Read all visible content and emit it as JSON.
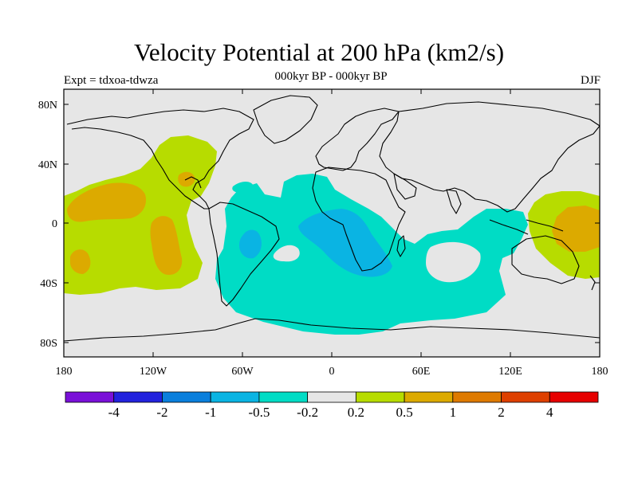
{
  "title": "Velocity Potential at 200 hPa (km2/s)",
  "subtitle_center": "000kyr BP - 000kyr BP",
  "subtitle_left": "Expt = tdxoa-tdwza",
  "subtitle_right": "DJF",
  "map": {
    "projection": "cylindrical equidistant",
    "lon_range": [
      -180,
      180
    ],
    "lat_range": [
      -90,
      90
    ],
    "background_color": "#e6e6e6",
    "y_tick_labels": [
      "80N",
      "40N",
      "0",
      "40S",
      "80S"
    ],
    "x_tick_labels": [
      "180",
      "120W",
      "60W",
      "0",
      "60E",
      "120E",
      "180"
    ]
  },
  "colorbar": {
    "colors": [
      "#7a10d8",
      "#2222dd",
      "#0a7fdc",
      "#0ab4e3",
      "#00dcc5",
      "#e6e6e6",
      "#b7dc00",
      "#dcaa00",
      "#de7a00",
      "#de4000",
      "#e60000"
    ],
    "labels": [
      "-4",
      "-2",
      "-1",
      "-0.5",
      "-0.2",
      "0.2",
      "0.5",
      "1",
      "2",
      "4"
    ]
  },
  "regions": [
    {
      "name": "negative-0.5-region",
      "level": "-0.5 to -0.2",
      "color": "#00dcc5"
    },
    {
      "name": "negative-1-region",
      "level": "-1 to -0.5",
      "color": "#0ab4e3"
    },
    {
      "name": "positive-0.5-region",
      "level": "0.2 to 0.5",
      "color": "#b7dc00"
    },
    {
      "name": "positive-1-region",
      "level": "0.5 to 1",
      "color": "#dcaa00"
    }
  ]
}
